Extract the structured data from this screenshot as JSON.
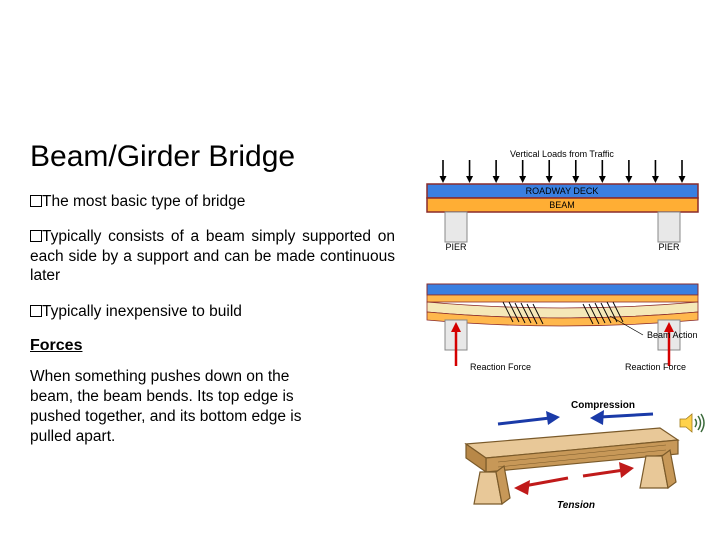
{
  "title": "Beam/Girder Bridge",
  "bullets": [
    "The most basic type of bridge",
    "Typically consists of a beam simply supported on each side by a support and can be made continuous later",
    "Typically inexpensive to build"
  ],
  "forces_heading": "Forces",
  "forces_text": "When something pushes down on the beam, the beam bends. Its top edge is pushed together, and its bottom edge is pulled apart.",
  "diagram1": {
    "arrow_count": 10,
    "top_label": "Vertical Loads from Traffic",
    "deck_label": "ROADWAY DECK",
    "beam_label": "BEAM",
    "pier_label": "PIER",
    "colors": {
      "arrow": "#000000",
      "deck": "#3a7fe0",
      "beam": "#ffae34",
      "deck_border": "#8a2b2b",
      "pier_fill": "#e8e8e8",
      "pier_border": "#888888"
    }
  },
  "diagram2": {
    "colors": {
      "deck": "#3a7fe0",
      "beam_top": "#ffb84d",
      "beam_mid": "#f5e8b8",
      "hatch": "#000000",
      "pier": "#e8e8e8",
      "reaction_arrow": "#d40000"
    },
    "label_action": "Beam Action",
    "label_reaction": "Reaction Force"
  },
  "diagram3": {
    "label_compression": "Compression",
    "label_tension": "Tension",
    "colors": {
      "wood_light": "#e8c898",
      "wood_dark": "#c79858",
      "wood_edge": "#7a5a2a",
      "comp_arrow": "#1a3aa8",
      "tens_arrow": "#c01a1a"
    }
  }
}
